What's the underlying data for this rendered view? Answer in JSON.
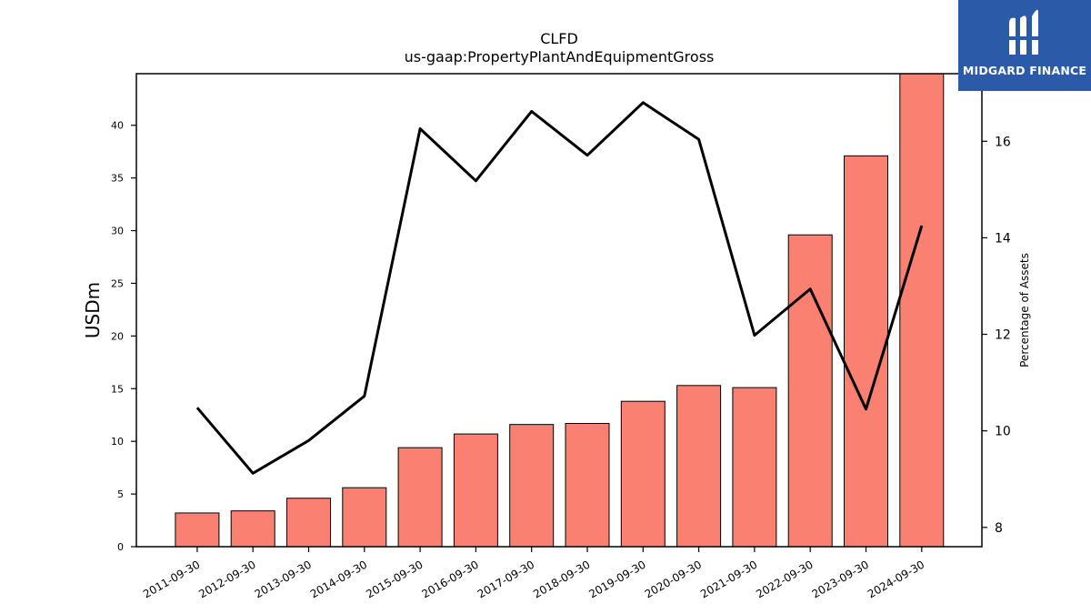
{
  "chart_data": {
    "type": "bar+line",
    "title": "CLFD",
    "subtitle": "us-gaap:PropertyPlantAndEquipmentGross",
    "ylabel": "USDm",
    "y2label": "Percentage of Assets",
    "categories": [
      "2011-09-30",
      "2012-09-30",
      "2013-09-30",
      "2014-09-30",
      "2015-09-30",
      "2016-09-30",
      "2017-09-30",
      "2018-09-30",
      "2019-09-30",
      "2020-09-30",
      "2021-09-30",
      "2022-09-30",
      "2023-09-30",
      "2024-09-30"
    ],
    "series": [
      {
        "axis": "left",
        "kind": "bar",
        "color": "#fa8072",
        "values": [
          3.2,
          3.4,
          4.6,
          5.6,
          9.4,
          10.7,
          11.6,
          11.7,
          13.8,
          15.3,
          15.1,
          29.6,
          37.1,
          44.9
        ]
      },
      {
        "axis": "right",
        "kind": "line",
        "color": "#000000",
        "values": [
          10.48,
          9.12,
          9.8,
          10.72,
          16.26,
          15.18,
          16.62,
          15.71,
          16.8,
          16.04,
          11.98,
          12.94,
          10.45,
          14.25
        ]
      }
    ],
    "ylim": [
      0,
      44.9
    ],
    "yticks": [
      0,
      5,
      10,
      15,
      20,
      25,
      30,
      35,
      40
    ],
    "y2lim": [
      7.6,
      17.4
    ],
    "y2ticks": [
      8,
      10,
      12,
      14,
      16
    ]
  },
  "logo": {
    "text": "MIDGARD FINANCE",
    "color": "#2b5aa8"
  }
}
